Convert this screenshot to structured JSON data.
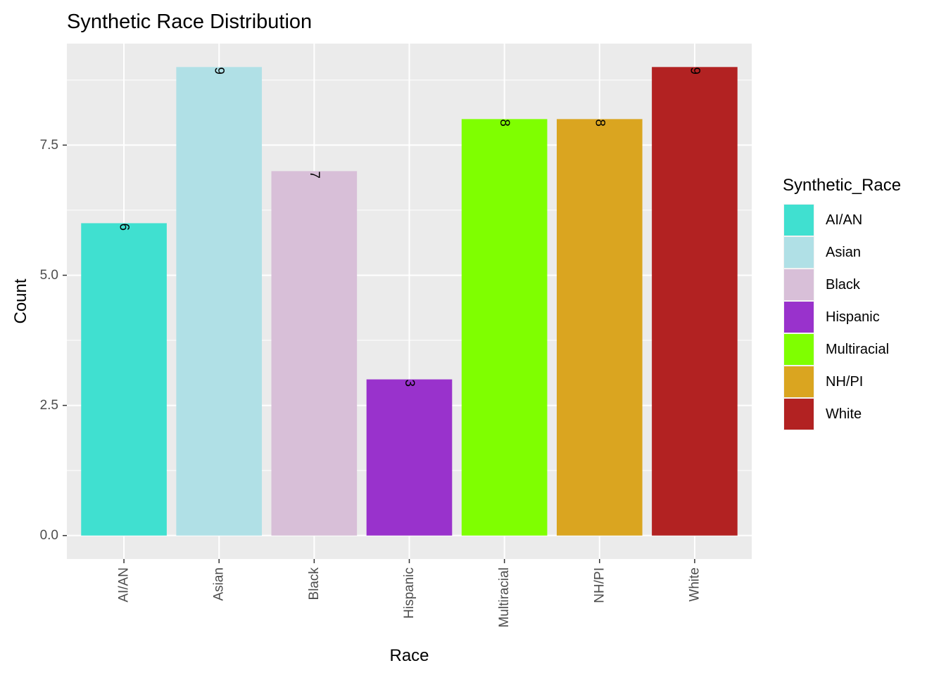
{
  "chart_data": {
    "type": "bar",
    "title": "Synthetic Race Distribution",
    "xlabel": "Race",
    "ylabel": "Count",
    "categories": [
      "AI/AN",
      "Asian",
      "Black",
      "Hispanic",
      "Multiracial",
      "NH/PI",
      "White"
    ],
    "values": [
      6,
      9,
      7,
      3,
      8,
      8,
      9
    ],
    "colors": [
      "#40E0D0",
      "#B0E0E6",
      "#D8BFD8",
      "#9932CC",
      "#7FFF00",
      "#DAA520",
      "#B22222"
    ],
    "y_ticks": [
      "0.0",
      "2.5",
      "5.0",
      "7.5"
    ],
    "y_tick_values": [
      0,
      2.5,
      5,
      7.5
    ],
    "ylim": [
      -0.45,
      9.45
    ],
    "grid": true,
    "legend": {
      "title": "Synthetic_Race",
      "position": "right",
      "entries": [
        "AI/AN",
        "Asian",
        "Black",
        "Hispanic",
        "Multiracial",
        "NH/PI",
        "White"
      ]
    },
    "data_labels": [
      "6",
      "9",
      "7",
      "3",
      "8",
      "8",
      "9"
    ]
  }
}
